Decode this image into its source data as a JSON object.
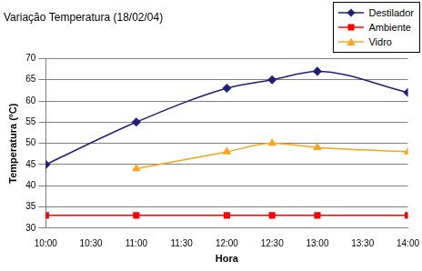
{
  "chart_data": {
    "type": "line",
    "title": "Variação Temperatura (18/02/04)",
    "xlabel": "Hora",
    "ylabel": "Temperatura (ºC)",
    "x": [
      10,
      11,
      12,
      12.5,
      13,
      14
    ],
    "series": [
      {
        "name": "Destilador",
        "color": "#1f1f7a",
        "marker": "diamond",
        "values": [
          45,
          55,
          63,
          65,
          67,
          62
        ]
      },
      {
        "name": "Ambiente",
        "color": "#ff0000",
        "marker": "square",
        "values": [
          33,
          33,
          33,
          33,
          33,
          33
        ]
      },
      {
        "name": "Vidro",
        "color": "#ffa31a",
        "marker": "triangle",
        "values": [
          null,
          44,
          48,
          50,
          49,
          48
        ]
      }
    ],
    "xlim": [
      10,
      14
    ],
    "xticks": [
      {
        "value": 10,
        "label": "10:00"
      },
      {
        "value": 10.5,
        "label": "10:30"
      },
      {
        "value": 11,
        "label": "11:00"
      },
      {
        "value": 11.5,
        "label": "11:30"
      },
      {
        "value": 12,
        "label": "12:00"
      },
      {
        "value": 12.5,
        "label": "12:30"
      },
      {
        "value": 13,
        "label": "13:00"
      },
      {
        "value": 13.5,
        "label": "13:30"
      },
      {
        "value": 14,
        "label": "14:00"
      }
    ],
    "ylim": [
      30,
      70
    ],
    "yticks": [
      30,
      35,
      40,
      45,
      50,
      55,
      60,
      65,
      70
    ],
    "grid": true,
    "legend": "top-right"
  }
}
